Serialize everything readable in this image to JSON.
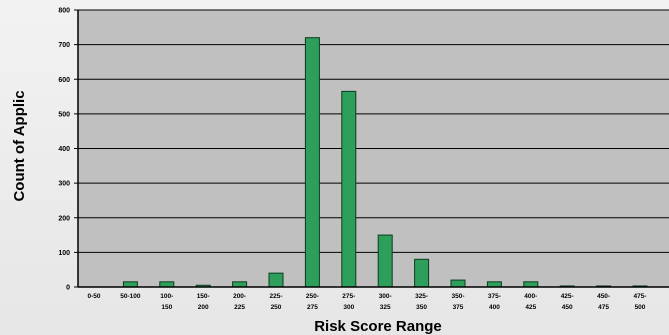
{
  "chart_data": {
    "type": "bar",
    "title": "",
    "xlabel": "Risk Score Range",
    "ylabel": "Count of Applic",
    "ylim": [
      0,
      800
    ],
    "y_ticks": [
      "0",
      "100",
      "200",
      "300",
      "400",
      "500",
      "600",
      "700",
      "800"
    ],
    "categories": [
      "0-50",
      "50-100",
      "100-150",
      "150-200",
      "200-225",
      "225-250",
      "250-275",
      "275-300",
      "300-325",
      "325-350",
      "350-375",
      "375-400",
      "400-425",
      "425-450",
      "450-475",
      "475-500"
    ],
    "category_label_lines": [
      [
        "0-50",
        ""
      ],
      [
        "50-100",
        ""
      ],
      [
        "100-",
        "150"
      ],
      [
        "150-",
        "200"
      ],
      [
        "200-",
        "225"
      ],
      [
        "225-",
        "250"
      ],
      [
        "250-",
        "275"
      ],
      [
        "275-",
        "300"
      ],
      [
        "300-",
        "325"
      ],
      [
        "325-",
        "350"
      ],
      [
        "350-",
        "375"
      ],
      [
        "375-",
        "400"
      ],
      [
        "400-",
        "425"
      ],
      [
        "425-",
        "450"
      ],
      [
        "450-",
        "475"
      ],
      [
        "475-",
        "500"
      ]
    ],
    "values": [
      0,
      15,
      15,
      5,
      15,
      40,
      720,
      565,
      150,
      80,
      20,
      15,
      15,
      3,
      3,
      3
    ],
    "grid": true,
    "colors": {
      "bar_fill": "#2e9e5b",
      "bar_stroke": "#0d3b1f",
      "plot_bg": "#c0c0c0",
      "gridline": "#000000"
    }
  }
}
